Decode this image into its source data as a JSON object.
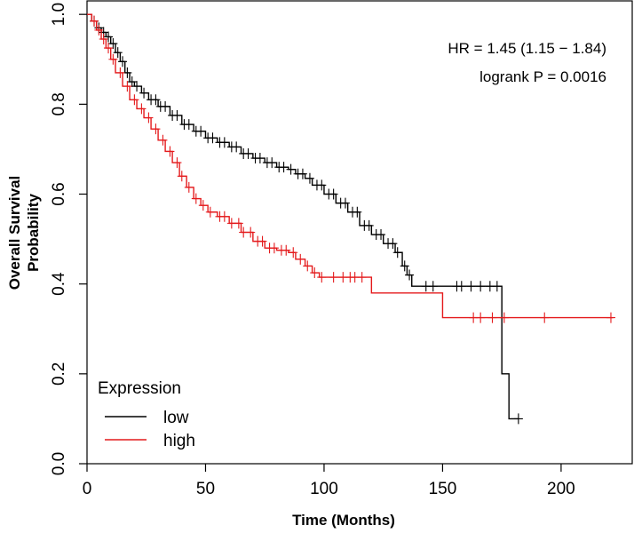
{
  "chart_data": {
    "type": "line",
    "xlabel": "Time (Months)",
    "ylabel_lines": [
      "Overall Survival",
      "Probability"
    ],
    "xlim": [
      0,
      230
    ],
    "ylim": [
      0,
      1.03
    ],
    "xticks": [
      0,
      50,
      100,
      150,
      200
    ],
    "yticks": [
      0.0,
      0.2,
      0.4,
      0.6,
      0.8,
      1.0
    ],
    "xtick_labels": [
      "0",
      "50",
      "100",
      "150",
      "200"
    ],
    "ytick_labels": [
      "0.0",
      "0.2",
      "0.4",
      "0.6",
      "0.8",
      "1.0"
    ],
    "grid": false,
    "annotations": [
      "HR = 1.45 (1.15 − 1.84)",
      "logrank P = 0.0016"
    ],
    "legend": {
      "title": "Expression",
      "position": "bottom-left"
    },
    "series": [
      {
        "name": "low",
        "color": "#000000",
        "x": [
          0,
          2,
          4,
          6,
          8,
          10,
          12,
          14,
          16,
          18,
          20,
          23,
          26,
          30,
          35,
          40,
          45,
          50,
          55,
          60,
          65,
          70,
          75,
          80,
          85,
          88,
          92,
          95,
          100,
          105,
          110,
          115,
          120,
          125,
          130,
          133,
          135,
          137,
          140,
          145,
          150,
          160,
          170,
          174,
          175,
          178,
          182
        ],
        "y": [
          1.0,
          0.985,
          0.97,
          0.96,
          0.95,
          0.935,
          0.915,
          0.895,
          0.87,
          0.85,
          0.84,
          0.825,
          0.81,
          0.795,
          0.775,
          0.755,
          0.74,
          0.725,
          0.715,
          0.705,
          0.69,
          0.68,
          0.67,
          0.66,
          0.655,
          0.645,
          0.635,
          0.62,
          0.6,
          0.58,
          0.56,
          0.53,
          0.51,
          0.49,
          0.47,
          0.44,
          0.42,
          0.395,
          0.395,
          0.395,
          0.395,
          0.395,
          0.395,
          0.395,
          0.2,
          0.1,
          0.1
        ],
        "censor_x": [
          3,
          5,
          7,
          9,
          11,
          13,
          15,
          17,
          19,
          21,
          24,
          27,
          29,
          31,
          33,
          36,
          38,
          41,
          43,
          46,
          48,
          51,
          53,
          56,
          58,
          61,
          63,
          66,
          68,
          71,
          73,
          76,
          78,
          81,
          83,
          86,
          89,
          91,
          94,
          97,
          99,
          102,
          104,
          107,
          109,
          112,
          114,
          117,
          119,
          122,
          124,
          127,
          129,
          131,
          134,
          136,
          143,
          146,
          156,
          158,
          162,
          166,
          170,
          173,
          182
        ]
      },
      {
        "name": "high",
        "color": "#e41a1c",
        "x": [
          0,
          2,
          4,
          6,
          8,
          10,
          12,
          15,
          18,
          21,
          24,
          27,
          30,
          33,
          36,
          39,
          42,
          45,
          48,
          51,
          55,
          60,
          65,
          70,
          75,
          80,
          85,
          88,
          92,
          95,
          98,
          100,
          110,
          120,
          130,
          140,
          150,
          160,
          170,
          180,
          190,
          200,
          210,
          222
        ],
        "y": [
          1.0,
          0.985,
          0.965,
          0.945,
          0.925,
          0.9,
          0.87,
          0.84,
          0.81,
          0.79,
          0.77,
          0.745,
          0.72,
          0.695,
          0.67,
          0.64,
          0.615,
          0.59,
          0.575,
          0.56,
          0.55,
          0.535,
          0.515,
          0.495,
          0.48,
          0.475,
          0.47,
          0.455,
          0.44,
          0.425,
          0.415,
          0.415,
          0.415,
          0.38,
          0.38,
          0.38,
          0.325,
          0.325,
          0.325,
          0.325,
          0.325,
          0.325,
          0.325,
          0.325
        ],
        "censor_x": [
          3,
          5,
          7,
          9,
          11,
          14,
          17,
          20,
          23,
          26,
          29,
          32,
          35,
          38,
          40,
          43,
          46,
          49,
          52,
          56,
          58,
          61,
          64,
          66,
          69,
          72,
          74,
          77,
          79,
          82,
          84,
          87,
          90,
          93,
          96,
          99,
          104,
          108,
          111,
          113,
          116,
          163,
          166,
          171,
          176,
          193,
          221
        ]
      }
    ]
  }
}
